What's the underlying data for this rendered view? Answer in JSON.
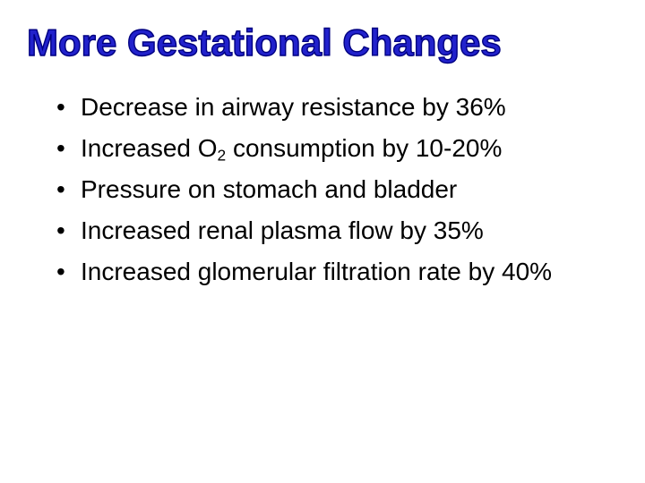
{
  "slide": {
    "title": "More Gestational Changes",
    "title_color": "#2222cc",
    "title_outline_color": "#000080",
    "background_color": "#ffffff",
    "body_text_color": "#000000",
    "bullet_glyph": "•",
    "bullets": [
      {
        "text": "Decrease in airway resistance by 36%"
      },
      {
        "pre": "Increased O",
        "sub": "2",
        "post": " consumption by 10-20%"
      },
      {
        "text": "Pressure on stomach and bladder"
      },
      {
        "text": "Increased renal plasma flow by 35%"
      },
      {
        "text": "Increased glomerular filtration rate by 40%"
      }
    ]
  }
}
